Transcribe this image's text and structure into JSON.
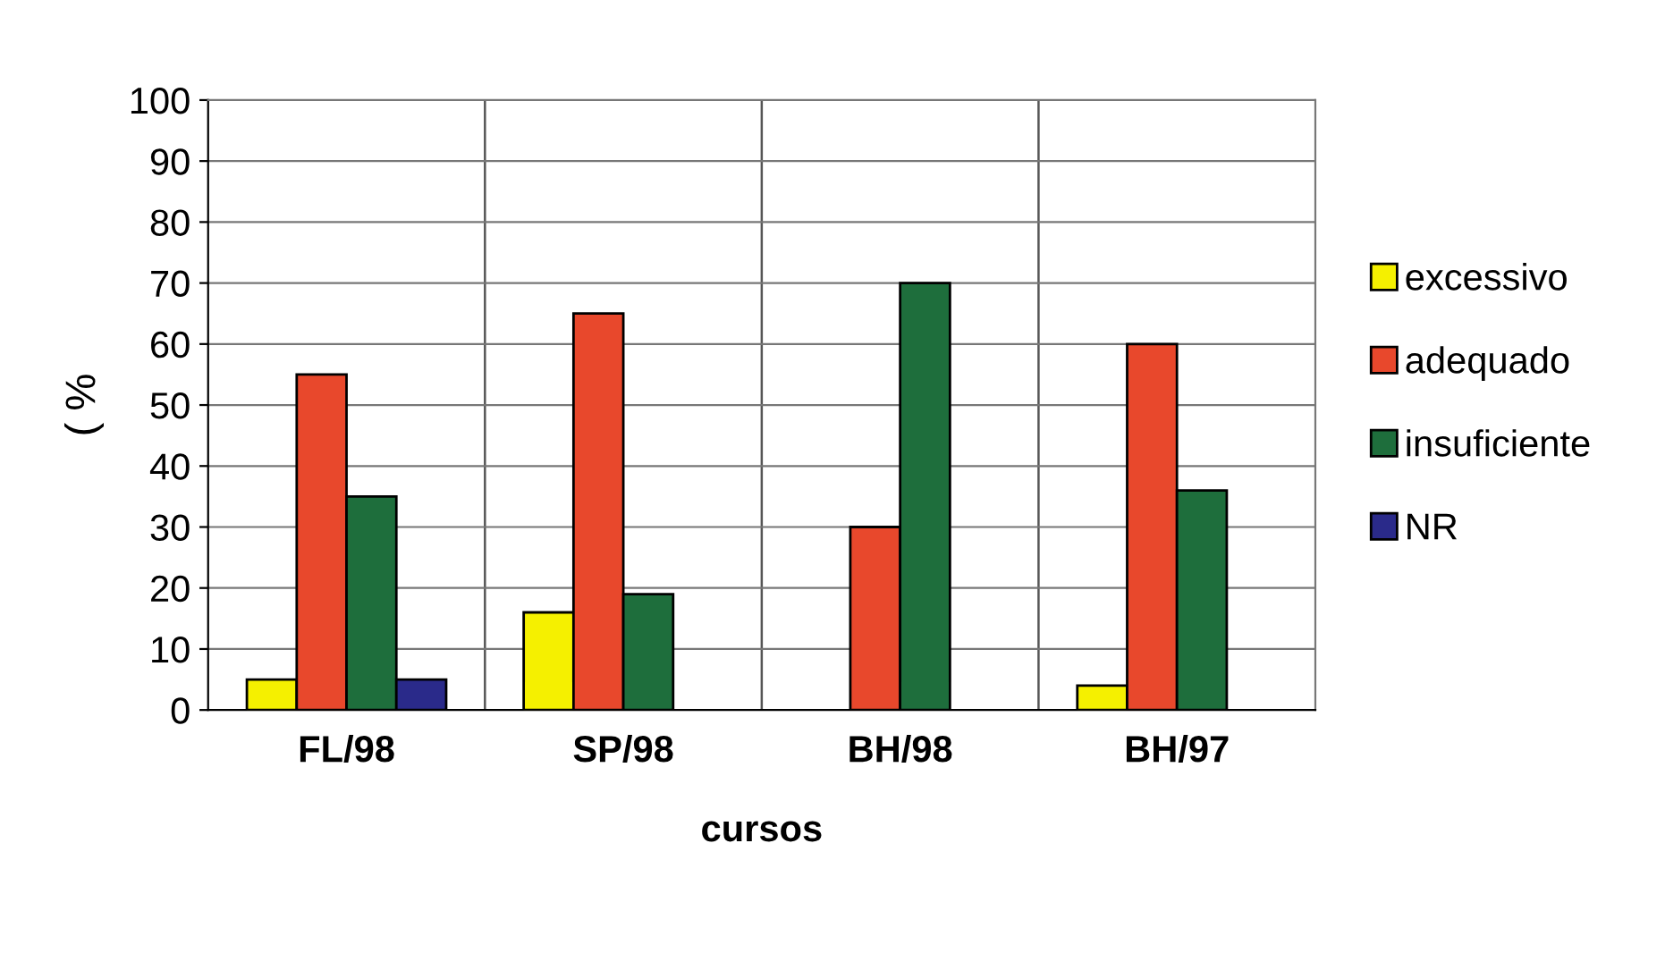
{
  "chart_data": {
    "type": "bar",
    "xlabel": "cursos",
    "ylabel": "( %",
    "categories": [
      "FL/98",
      "SP/98",
      "BH/98",
      "BH/97"
    ],
    "series": [
      {
        "name": "excessivo",
        "color": "#f5f000",
        "values": [
          5,
          16,
          null,
          4
        ]
      },
      {
        "name": "adequado",
        "color": "#e8482c",
        "values": [
          55,
          65,
          30,
          60
        ]
      },
      {
        "name": "insuficiente",
        "color": "#1e6e3c",
        "values": [
          35,
          19,
          70,
          36
        ]
      },
      {
        "name": "NR",
        "color": "#2a2a8a",
        "values": [
          5,
          null,
          null,
          null
        ]
      }
    ],
    "ylim": [
      0,
      100
    ],
    "yticks": [
      0,
      10,
      20,
      30,
      40,
      50,
      60,
      70,
      80,
      90,
      100
    ],
    "grid": true,
    "legend": "right"
  }
}
